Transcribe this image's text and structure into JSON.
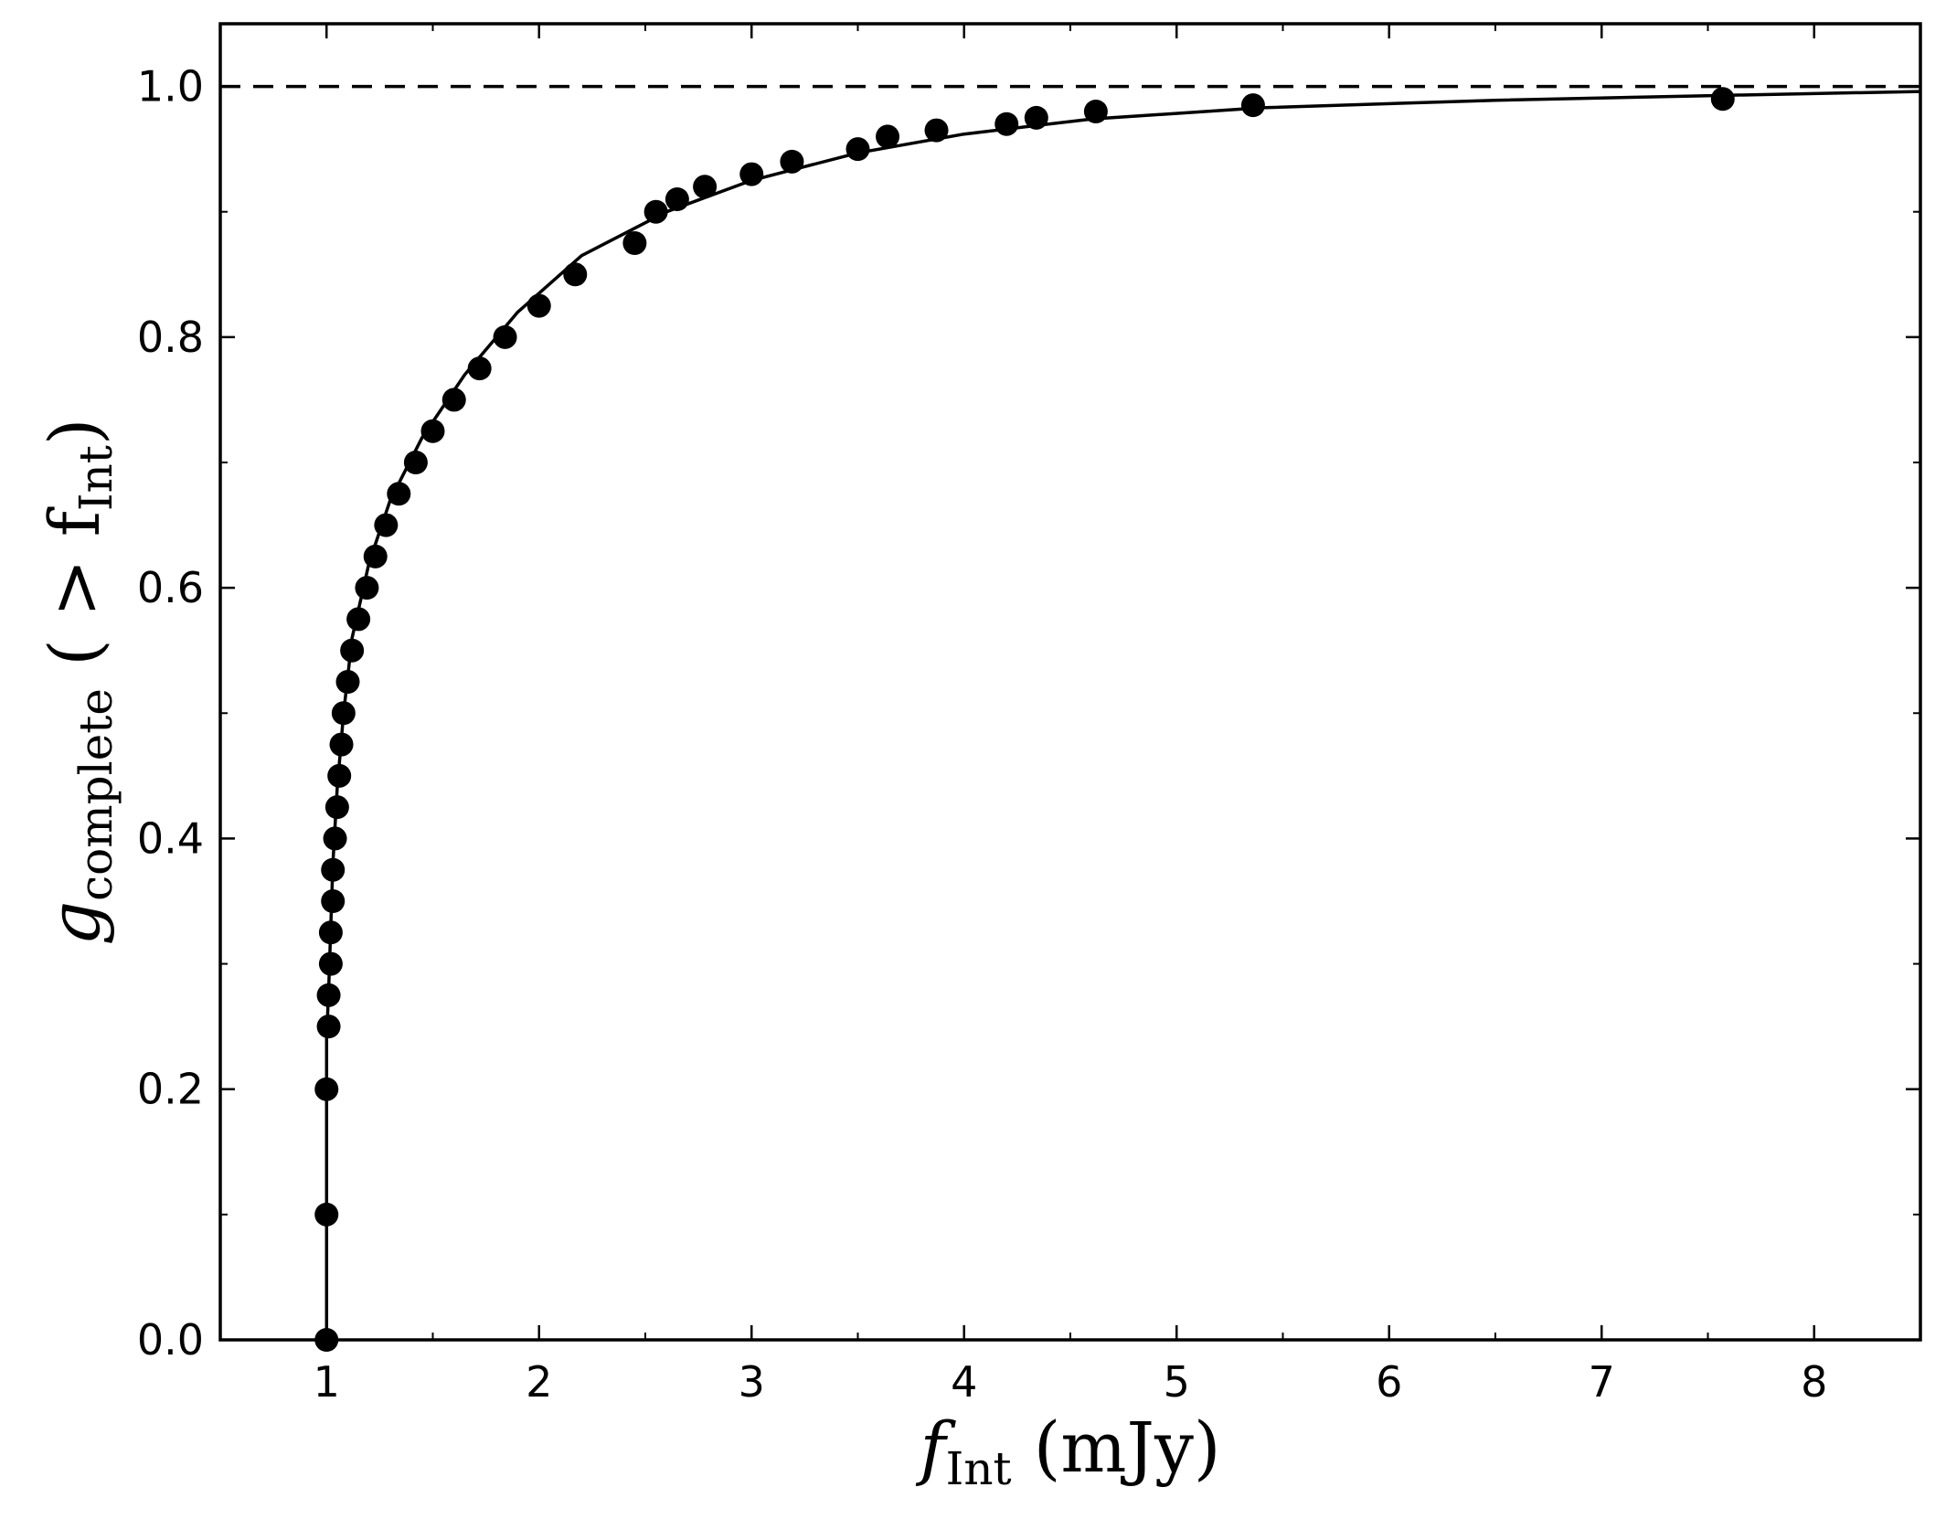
{
  "chart_data": {
    "type": "line",
    "title": "",
    "xlabel": {
      "main": "f",
      "sub": "Int",
      "unit": " (mJy)"
    },
    "ylabel": {
      "main": "g",
      "sub": "complete",
      "rest": " ( > f",
      "rest_sub": "Int",
      "close": ")"
    },
    "xlim": [
      0.5,
      8.5
    ],
    "ylim": [
      0.0,
      1.05
    ],
    "x_ticks": [
      1,
      2,
      3,
      4,
      5,
      6,
      7,
      8
    ],
    "x_tick_labels": [
      "1",
      "2",
      "3",
      "4",
      "5",
      "6",
      "7",
      "8"
    ],
    "y_ticks": [
      0.0,
      0.2,
      0.4,
      0.6,
      0.8,
      1.0
    ],
    "y_tick_labels": [
      "0.0",
      "0.2",
      "0.4",
      "0.6",
      "0.8",
      "1.0"
    ],
    "grid": false,
    "legend": "none",
    "reference_line": {
      "y": 1.0,
      "style": "dashed"
    },
    "colors": {
      "line": "#000000",
      "marker": "#000000",
      "axes": "#000000"
    },
    "series": [
      {
        "x": [
          1.0,
          1.0,
          1.0,
          1.01,
          1.01,
          1.02,
          1.02,
          1.03,
          1.03,
          1.04,
          1.05,
          1.06,
          1.07,
          1.08,
          1.1,
          1.12,
          1.15,
          1.19,
          1.23,
          1.28,
          1.34,
          1.42,
          1.5,
          1.6,
          1.72,
          1.84,
          2.0,
          2.17,
          2.45,
          2.55,
          2.65,
          2.78,
          3.0,
          3.19,
          3.5,
          3.64,
          3.87,
          4.2,
          4.34,
          4.62,
          5.36,
          7.57
        ],
        "y": [
          0.0,
          0.1,
          0.2,
          0.25,
          0.275,
          0.3,
          0.325,
          0.35,
          0.375,
          0.4,
          0.425,
          0.45,
          0.475,
          0.5,
          0.525,
          0.55,
          0.575,
          0.6,
          0.625,
          0.65,
          0.675,
          0.7,
          0.725,
          0.75,
          0.775,
          0.8,
          0.825,
          0.85,
          0.875,
          0.9,
          0.91,
          0.92,
          0.93,
          0.94,
          0.95,
          0.96,
          0.965,
          0.97,
          0.975,
          0.98,
          0.985,
          0.99
        ]
      }
    ],
    "curve": {
      "x": [
        1.0,
        1.0,
        1.01,
        1.02,
        1.03,
        1.05,
        1.08,
        1.12,
        1.2,
        1.3,
        1.45,
        1.65,
        1.9,
        2.2,
        2.6,
        3.0,
        3.5,
        4.0,
        4.6,
        5.4,
        6.5,
        7.6,
        8.5
      ],
      "y": [
        0.0,
        0.24,
        0.28,
        0.33,
        0.38,
        0.44,
        0.5,
        0.56,
        0.62,
        0.67,
        0.72,
        0.77,
        0.82,
        0.865,
        0.9,
        0.925,
        0.947,
        0.962,
        0.974,
        0.983,
        0.989,
        0.993,
        0.996
      ]
    }
  }
}
